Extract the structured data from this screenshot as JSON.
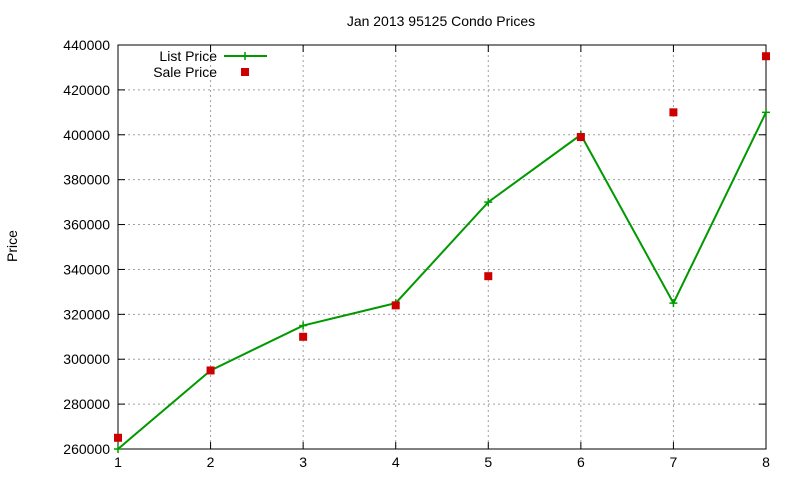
{
  "chart_data": {
    "type": "line",
    "title": "Jan 2013 95125 Condo Prices",
    "xlabel": "",
    "ylabel": "Price",
    "x": [
      1,
      2,
      3,
      4,
      5,
      6,
      7,
      8
    ],
    "xlim": [
      1,
      8
    ],
    "ylim": [
      260000,
      440000
    ],
    "xticks": [
      "1",
      "2",
      "3",
      "4",
      "5",
      "6",
      "7",
      "8"
    ],
    "yticks": [
      "260000",
      "280000",
      "300000",
      "320000",
      "340000",
      "360000",
      "380000",
      "400000",
      "420000",
      "440000"
    ],
    "grid": true,
    "legend_position": "top-left",
    "series": [
      {
        "name": "List Price",
        "style": "line-with-plus-markers",
        "color": "#009900",
        "values": [
          260000,
          295000,
          315000,
          325000,
          370000,
          400000,
          325000,
          410000
        ]
      },
      {
        "name": "Sale Price",
        "style": "square-markers",
        "color": "#cc0000",
        "values": [
          265000,
          295000,
          310000,
          324000,
          337000,
          399000,
          410000,
          435000
        ]
      }
    ]
  }
}
